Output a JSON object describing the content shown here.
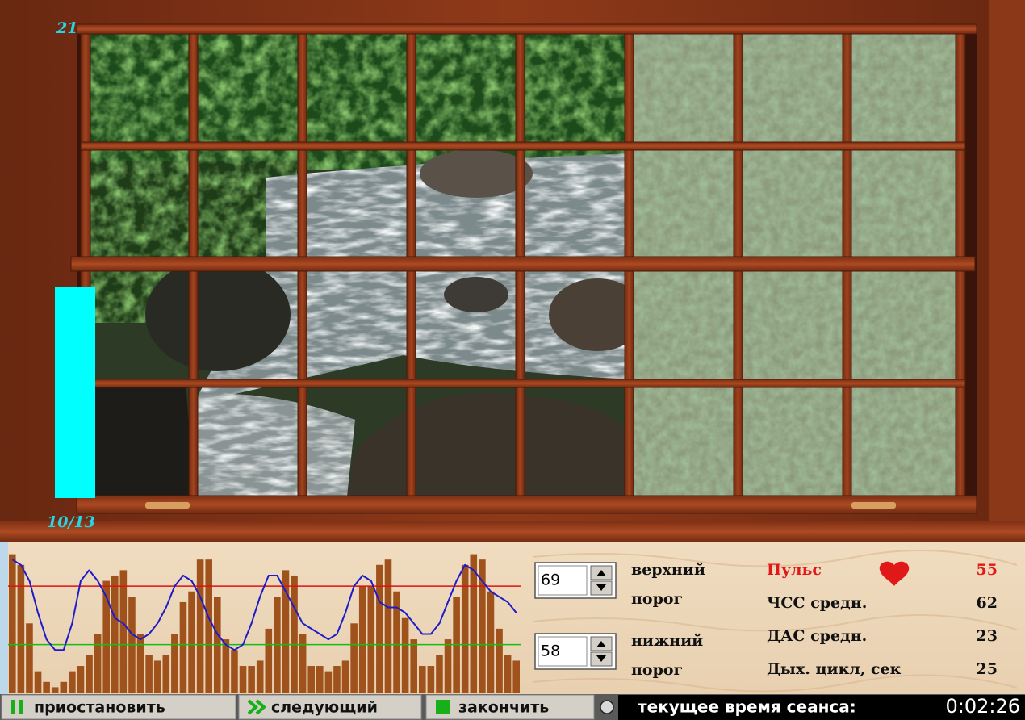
{
  "window": {
    "top_label": "21",
    "bottom_label": "10/13"
  },
  "chart_data": {
    "type": "bar",
    "values": [
      75,
      73,
      62,
      53,
      51,
      50,
      51,
      53,
      54,
      56,
      60,
      70,
      71,
      72,
      67,
      60,
      56,
      55,
      56,
      60,
      66,
      68,
      74,
      74,
      67,
      59,
      57,
      54,
      54,
      55,
      61,
      67,
      72,
      71,
      60,
      54,
      54,
      53,
      54,
      55,
      62,
      69,
      69,
      73,
      74,
      68,
      63,
      59,
      54,
      54,
      56,
      59,
      67,
      73,
      75,
      74,
      68,
      61,
      56,
      55
    ],
    "color": "#a0521d",
    "line": {
      "color": "#1c1cc8",
      "values": [
        74,
        73,
        70,
        64,
        59,
        57,
        57,
        62,
        70,
        72,
        70,
        67,
        63,
        62,
        60,
        59,
        60,
        62,
        65,
        69,
        71,
        70,
        67,
        63,
        60,
        58,
        57,
        58,
        62,
        67,
        71,
        71,
        68,
        65,
        62,
        61,
        60,
        59,
        60,
        64,
        69,
        71,
        70,
        66,
        65,
        65,
        64,
        62,
        60,
        60,
        62,
        66,
        70,
        73,
        72,
        70,
        68,
        67,
        66,
        64
      ]
    },
    "ylim": [
      49,
      76
    ]
  },
  "controls": [
    {
      "value": 69,
      "label_lines": [
        "верхний",
        "порог"
      ],
      "line_color": "#e01010"
    },
    {
      "value": 58,
      "label_lines": [
        "нижний",
        "порог"
      ],
      "line_color": "#10c010"
    }
  ],
  "stats": [
    {
      "label": "Пульс",
      "value": 55
    },
    {
      "label": "ЧСС средн.",
      "value": 62
    },
    {
      "label": "ДАС средн.",
      "value": 23
    },
    {
      "label": "Дых. цикл, сек",
      "value": 25
    }
  ],
  "buttons": [
    "приостановить",
    "следующий",
    "закончить"
  ],
  "status": {
    "label": "текущее время сеанса:",
    "time": "0:02:26"
  }
}
